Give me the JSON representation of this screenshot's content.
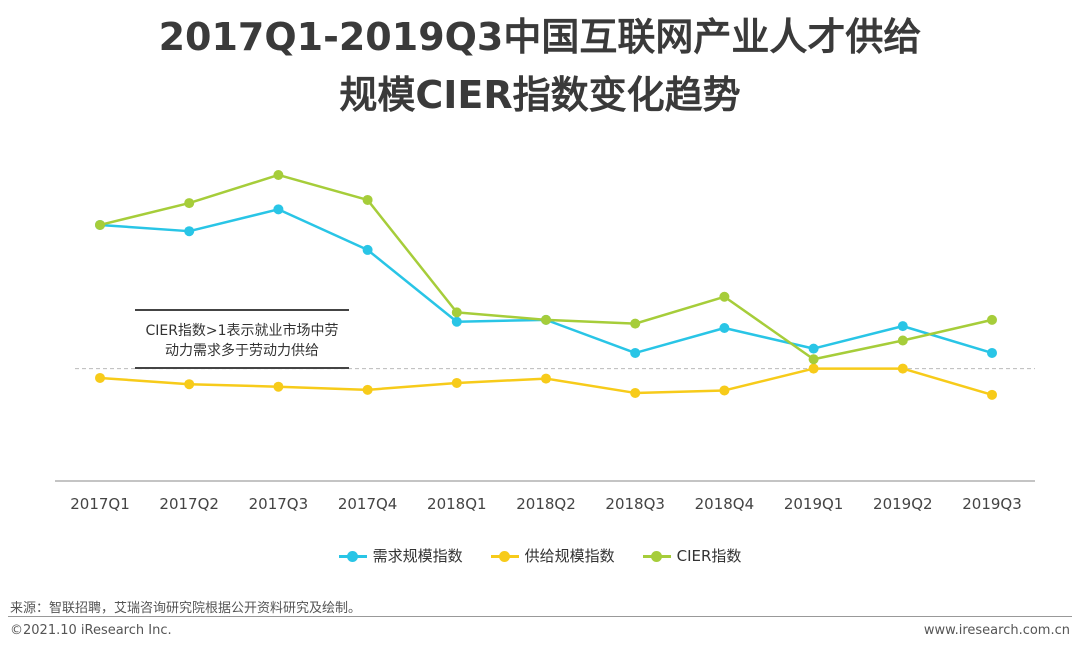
{
  "title_line1": "2017Q1-2019Q3中国互联网产业人才供给",
  "title_line2": "规模CIER指数变化趋势",
  "note_line1": "CIER指数>1表示就业市场中劳",
  "note_line2": "动力需求多于劳动力供给",
  "source": "来源：智联招聘，艾瑞咨询研究院根据公开资料研究及绘制。",
  "copyright": "©2021.10 iResearch Inc.",
  "website": "www.iresearch.com.cn",
  "colors": {
    "demand": "#29c5e6",
    "supply": "#f7cb1a",
    "cier": "#a6cd3a",
    "reference": "#bbbbbb",
    "axis": "#888888"
  },
  "chart_data": {
    "type": "line",
    "categories": [
      "2017Q1",
      "2017Q2",
      "2017Q3",
      "2017Q4",
      "2018Q1",
      "2018Q2",
      "2018Q3",
      "2018Q4",
      "2019Q1",
      "2019Q2",
      "2019Q3"
    ],
    "series": [
      {
        "name": "需求规模指数",
        "color_key": "demand",
        "values": [
          3.3,
          3.2,
          3.55,
          2.9,
          1.75,
          1.78,
          1.25,
          1.65,
          1.32,
          1.68,
          1.25
        ]
      },
      {
        "name": "供给规模指数",
        "color_key": "supply",
        "values": [
          0.85,
          0.75,
          0.71,
          0.66,
          0.77,
          0.84,
          0.61,
          0.65,
          1.0,
          1.0,
          0.58
        ]
      },
      {
        "name": "CIER指数",
        "color_key": "cier",
        "values": [
          3.3,
          3.65,
          4.1,
          3.7,
          1.9,
          1.78,
          1.72,
          2.15,
          1.15,
          1.45,
          1.78
        ]
      }
    ],
    "reference_line": 1,
    "ylim": [
      -0.8,
      4.5
    ],
    "y_axis_shown": false,
    "grid": false,
    "legend_position": "bottom"
  }
}
